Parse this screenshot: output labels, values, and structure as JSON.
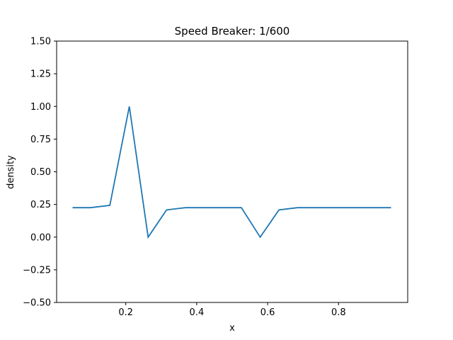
{
  "chart_data": {
    "type": "line",
    "title": "Speed Breaker: 1/600",
    "xlabel": "x",
    "ylabel": "density",
    "xlim": [
      0.005,
      0.995
    ],
    "ylim": [
      -0.5,
      1.5
    ],
    "xticks": [
      0.2,
      0.4,
      0.6,
      0.8
    ],
    "xtick_labels": [
      "0.2",
      "0.4",
      "0.6",
      "0.8"
    ],
    "yticks": [
      -0.5,
      -0.25,
      0.0,
      0.25,
      0.5,
      0.75,
      1.0,
      1.25,
      1.5
    ],
    "ytick_labels": [
      "−0.50",
      "−0.25",
      "0.00",
      "0.25",
      "0.50",
      "0.75",
      "1.00",
      "1.25",
      "1.50"
    ],
    "grid": false,
    "line_color": "#1f77b4",
    "series": [
      {
        "x": [
          0.05,
          0.1,
          0.155,
          0.21,
          0.263,
          0.315,
          0.368,
          0.42,
          0.473,
          0.526,
          0.579,
          0.632,
          0.684,
          0.737,
          0.79,
          0.842,
          0.895,
          0.948
        ],
        "y": [
          0.225,
          0.225,
          0.243,
          1.0,
          0.0,
          0.208,
          0.225,
          0.225,
          0.225,
          0.225,
          0.0,
          0.208,
          0.225,
          0.225,
          0.225,
          0.225,
          0.225,
          0.225
        ]
      }
    ]
  }
}
